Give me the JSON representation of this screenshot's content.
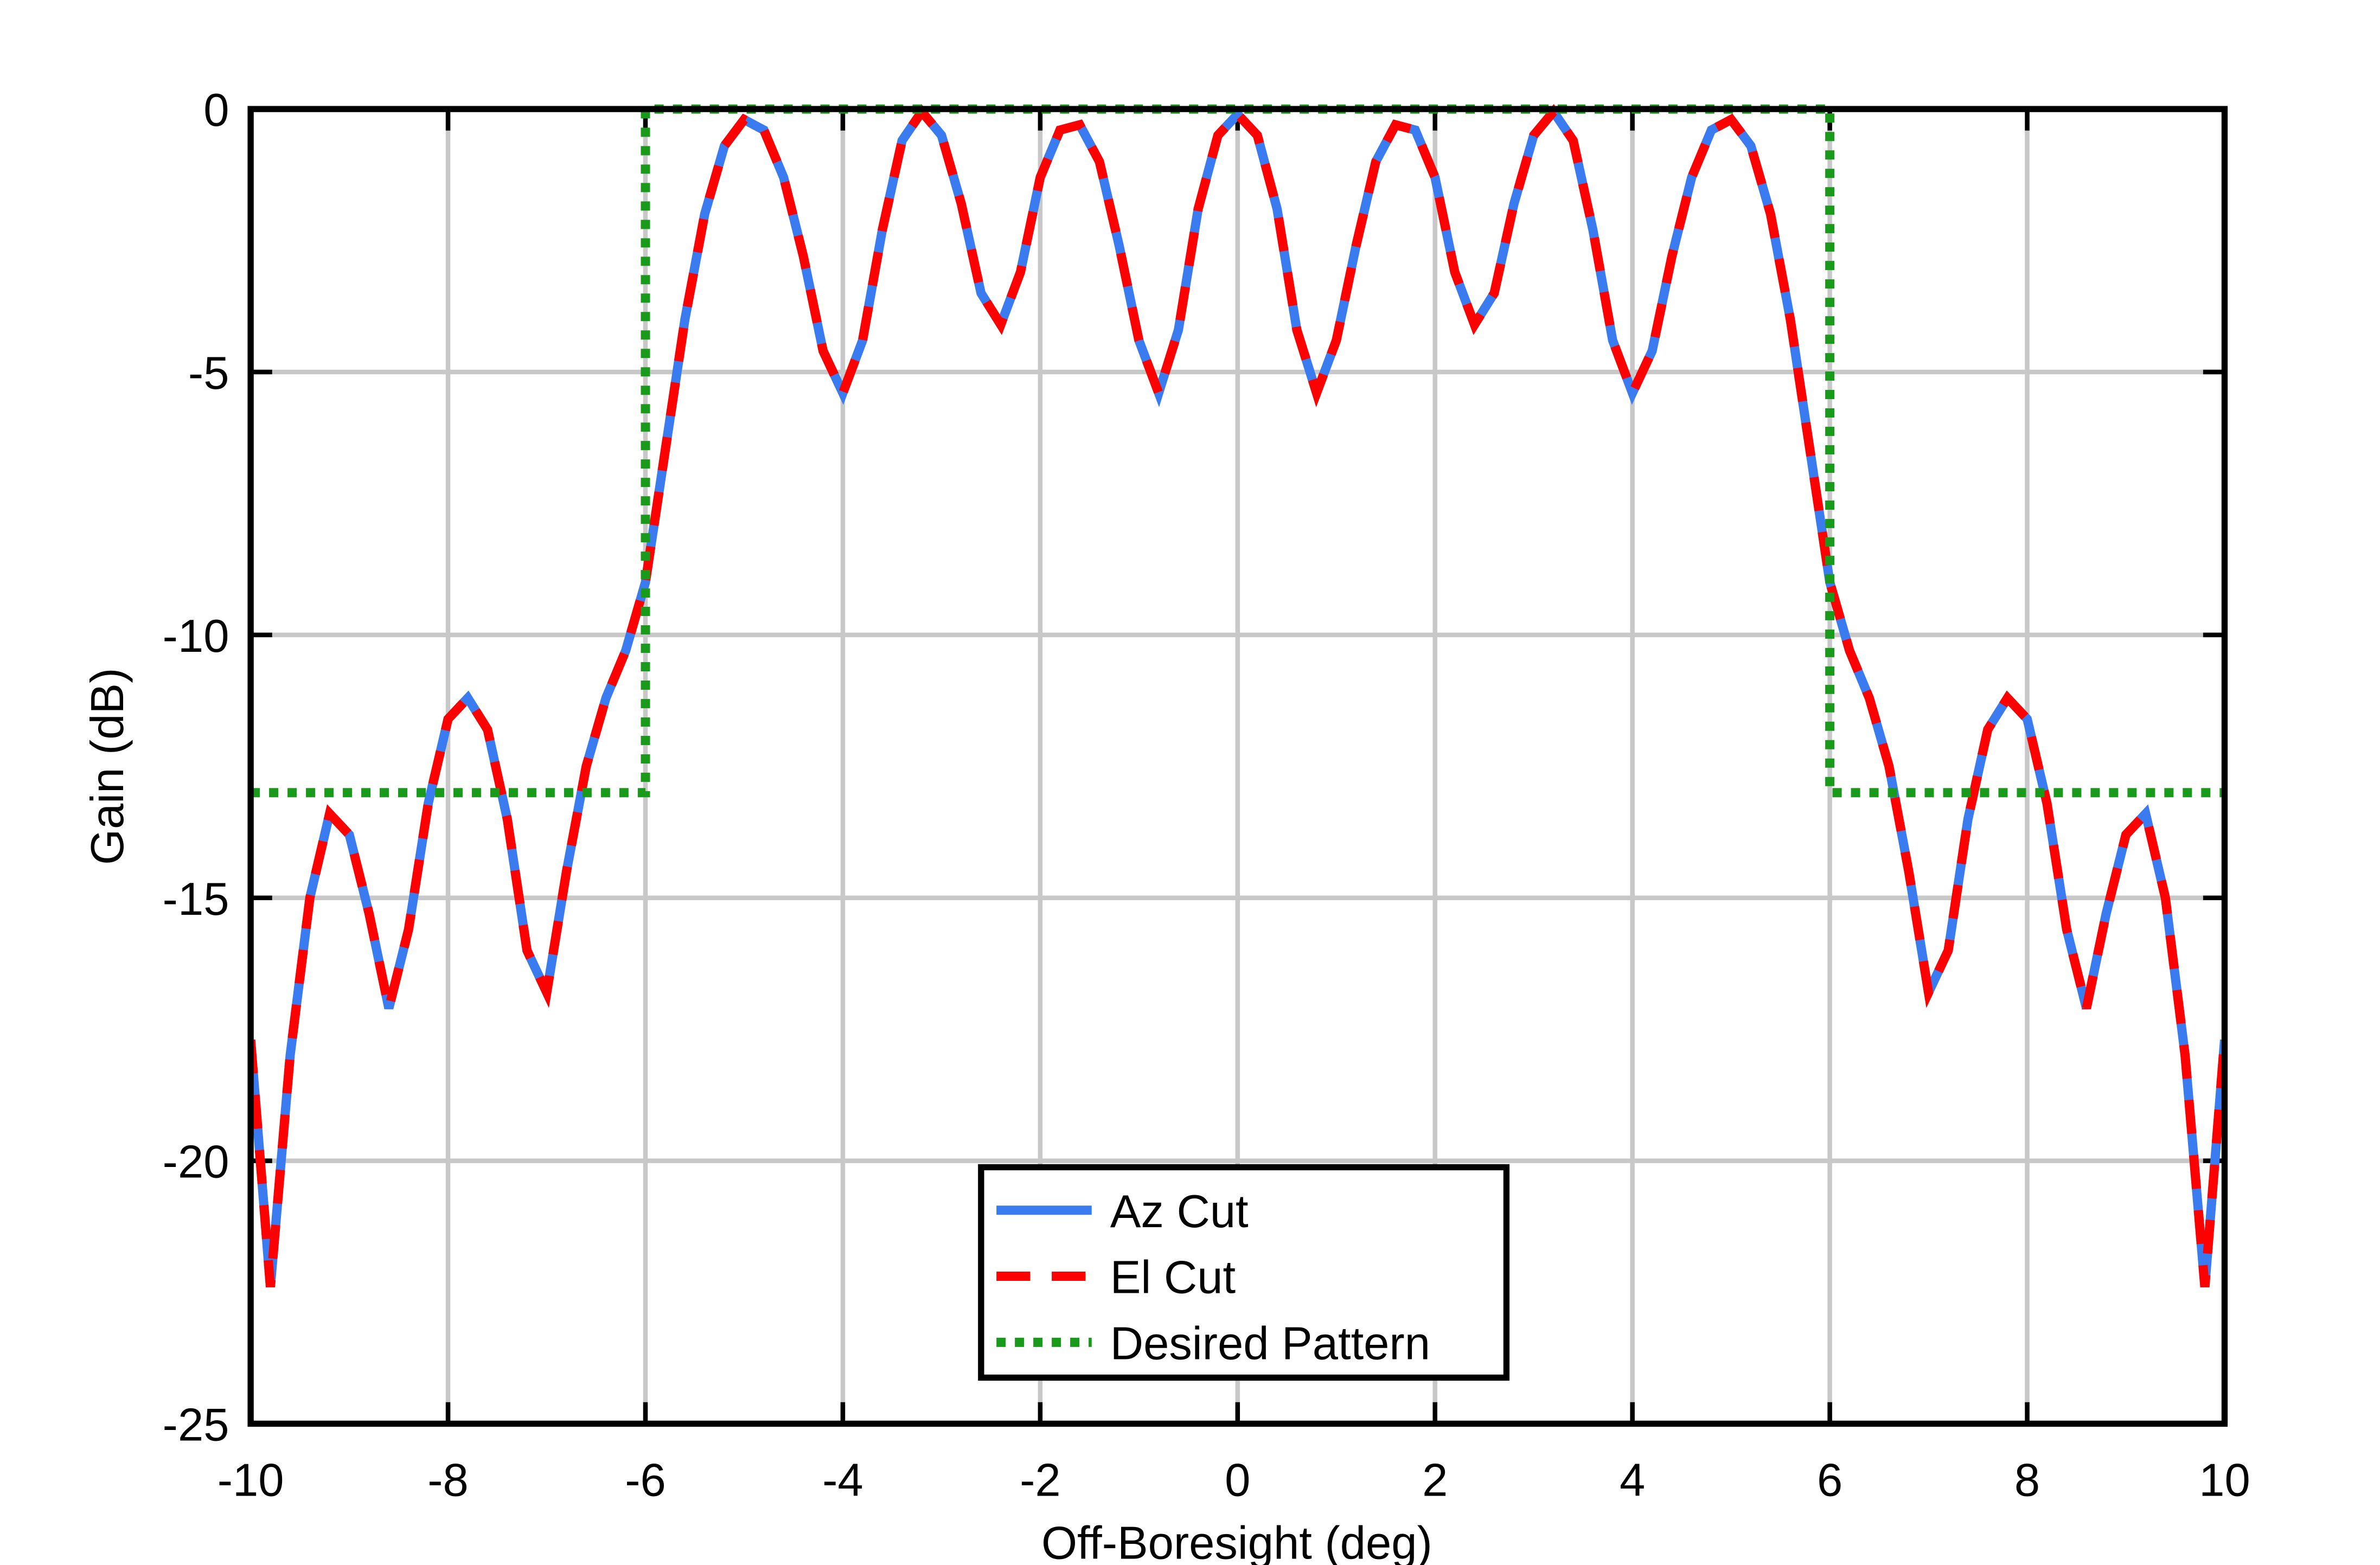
{
  "chart_data": {
    "type": "line",
    "x_label": "Off-Boresight (deg)",
    "y_label": "Gain (dB)",
    "xlim": [
      -10,
      10
    ],
    "ylim": [
      -25,
      0
    ],
    "xticks": [
      -10,
      -8,
      -6,
      -4,
      -2,
      0,
      2,
      4,
      6,
      8,
      10
    ],
    "yticks": [
      -25,
      -20,
      -15,
      -10,
      -5,
      0
    ],
    "grid": true,
    "legend": "lower center",
    "series": [
      {
        "name": "Az Cut",
        "color": "#3a7bf0",
        "dash": "solid",
        "x": [
          -10,
          -9.8,
          -9.6,
          -9.4,
          -9.2,
          -9,
          -8.8,
          -8.6,
          -8.4,
          -8.2,
          -8,
          -7.8,
          -7.6,
          -7.4,
          -7.2,
          -7,
          -6.8,
          -6.6,
          -6.4,
          -6.2,
          -6,
          -5.8,
          -5.6,
          -5.4,
          -5.2,
          -5,
          -4.8,
          -4.6,
          -4.4,
          -4.2,
          -4,
          -3.8,
          -3.6,
          -3.4,
          -3.2,
          -3,
          -2.8,
          -2.6,
          -2.4,
          -2.2,
          -2,
          -1.8,
          -1.6,
          -1.4,
          -1.2,
          -1,
          -0.8,
          -0.6,
          -0.4,
          -0.2,
          0,
          0.2,
          0.4,
          0.6,
          0.8,
          1,
          1.2,
          1.4,
          1.6,
          1.8,
          2,
          2.2,
          2.4,
          2.6,
          2.8,
          3,
          3.2,
          3.4,
          3.6,
          3.8,
          4,
          4.2,
          4.4,
          4.6,
          4.8,
          5,
          5.2,
          5.4,
          5.6,
          5.8,
          6,
          6.2,
          6.4,
          6.6,
          6.8,
          7,
          7.2,
          7.4,
          7.6,
          7.8,
          8,
          8.2,
          8.4,
          8.6,
          8.8,
          9,
          9.2,
          9.4,
          9.6,
          9.8,
          10
        ],
        "values": [
          -17.7,
          -22.4,
          -18,
          -15,
          -13.4,
          -13.8,
          -15.3,
          -17.1,
          -15.6,
          -13.2,
          -11.6,
          -11.2,
          -11.8,
          -13.5,
          -16,
          -16.8,
          -14.5,
          -12.5,
          -11.2,
          -10.3,
          -9,
          -6.5,
          -4,
          -2,
          -0.7,
          -0.2,
          -0.4,
          -1.3,
          -2.8,
          -4.6,
          -5.4,
          -4.4,
          -2.3,
          -0.6,
          -0.05,
          -0.5,
          -1.8,
          -3.5,
          -4.1,
          -3.1,
          -1.3,
          -0.4,
          -0.3,
          -1,
          -2.6,
          -4.4,
          -5.4,
          -4.2,
          -1.9,
          -0.5,
          -0.1,
          -0.5,
          -1.9,
          -4.2,
          -5.4,
          -4.4,
          -2.6,
          -1,
          -0.3,
          -0.4,
          -1.3,
          -3.1,
          -4.1,
          -3.5,
          -1.8,
          -0.5,
          -0.05,
          -0.6,
          -2.3,
          -4.4,
          -5.4,
          -4.6,
          -2.8,
          -1.3,
          -0.4,
          -0.2,
          -0.7,
          -2,
          -4,
          -6.5,
          -9,
          -10.3,
          -11.2,
          -12.5,
          -14.5,
          -16.8,
          -16,
          -13.5,
          -11.8,
          -11.2,
          -11.6,
          -13.2,
          -15.6,
          -17.1,
          -15.3,
          -13.8,
          -13.4,
          -15,
          -18,
          -22.4,
          -17.7
        ]
      },
      {
        "name": "El Cut",
        "color": "#ff0000",
        "dash": "dashed",
        "x": [
          -10,
          -9.8,
          -9.6,
          -9.4,
          -9.2,
          -9,
          -8.8,
          -8.6,
          -8.4,
          -8.2,
          -8,
          -7.8,
          -7.6,
          -7.4,
          -7.2,
          -7,
          -6.8,
          -6.6,
          -6.4,
          -6.2,
          -6,
          -5.8,
          -5.6,
          -5.4,
          -5.2,
          -5,
          -4.8,
          -4.6,
          -4.4,
          -4.2,
          -4,
          -3.8,
          -3.6,
          -3.4,
          -3.2,
          -3,
          -2.8,
          -2.6,
          -2.4,
          -2.2,
          -2,
          -1.8,
          -1.6,
          -1.4,
          -1.2,
          -1,
          -0.8,
          -0.6,
          -0.4,
          -0.2,
          0,
          0.2,
          0.4,
          0.6,
          0.8,
          1,
          1.2,
          1.4,
          1.6,
          1.8,
          2,
          2.2,
          2.4,
          2.6,
          2.8,
          3,
          3.2,
          3.4,
          3.6,
          3.8,
          4,
          4.2,
          4.4,
          4.6,
          4.8,
          5,
          5.2,
          5.4,
          5.6,
          5.8,
          6,
          6.2,
          6.4,
          6.6,
          6.8,
          7,
          7.2,
          7.4,
          7.6,
          7.8,
          8,
          8.2,
          8.4,
          8.6,
          8.8,
          9,
          9.2,
          9.4,
          9.6,
          9.8,
          10
        ],
        "values": [
          -17.7,
          -22.4,
          -18,
          -15,
          -13.4,
          -13.8,
          -15.3,
          -17.1,
          -15.6,
          -13.2,
          -11.6,
          -11.2,
          -11.8,
          -13.5,
          -16,
          -16.8,
          -14.5,
          -12.5,
          -11.2,
          -10.3,
          -9,
          -6.5,
          -4,
          -2,
          -0.7,
          -0.2,
          -0.4,
          -1.3,
          -2.8,
          -4.6,
          -5.4,
          -4.4,
          -2.3,
          -0.6,
          -0.05,
          -0.5,
          -1.8,
          -3.5,
          -4.1,
          -3.1,
          -1.3,
          -0.4,
          -0.3,
          -1,
          -2.6,
          -4.4,
          -5.4,
          -4.2,
          -1.9,
          -0.5,
          -0.1,
          -0.5,
          -1.9,
          -4.2,
          -5.4,
          -4.4,
          -2.6,
          -1,
          -0.3,
          -0.4,
          -1.3,
          -3.1,
          -4.1,
          -3.5,
          -1.8,
          -0.5,
          -0.05,
          -0.6,
          -2.3,
          -4.4,
          -5.4,
          -4.6,
          -2.8,
          -1.3,
          -0.4,
          -0.2,
          -0.7,
          -2,
          -4,
          -6.5,
          -9,
          -10.3,
          -11.2,
          -12.5,
          -14.5,
          -16.8,
          -16,
          -13.5,
          -11.8,
          -11.2,
          -11.6,
          -13.2,
          -15.6,
          -17.1,
          -15.3,
          -13.8,
          -13.4,
          -15,
          -18,
          -22.4,
          -17.7
        ]
      },
      {
        "name": "Desired Pattern",
        "color": "#1a9a1a",
        "dash": "dotted",
        "x": [
          -10,
          -6,
          -6,
          6,
          6,
          10
        ],
        "values": [
          -13,
          -13,
          0,
          0,
          -13,
          -13
        ]
      }
    ]
  }
}
